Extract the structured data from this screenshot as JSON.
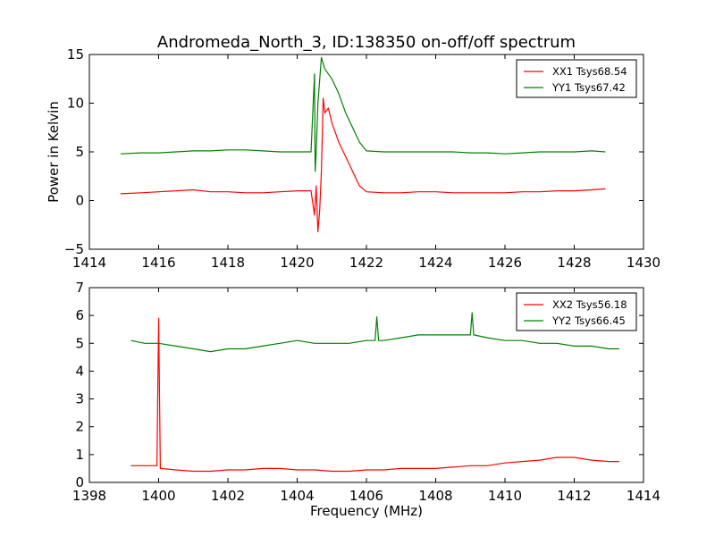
{
  "figure": {
    "title": "Andromeda_North_3, ID:138350 on-off/off spectrum"
  },
  "chart_data": [
    {
      "type": "line",
      "title": "Andromeda_North_3, ID:138350 on-off/off spectrum",
      "xlabel": "",
      "ylabel": "Power in Kelvin",
      "xlim": [
        1414,
        1430
      ],
      "ylim": [
        -5,
        15
      ],
      "xticks": [
        1414,
        1416,
        1418,
        1420,
        1422,
        1424,
        1426,
        1428,
        1430
      ],
      "yticks": [
        -5,
        0,
        5,
        10,
        15
      ],
      "grid": false,
      "legend_position": "top-right",
      "series": [
        {
          "name": "XX1 Tsys68.54",
          "color": "#ff0000",
          "x": [
            1414.9,
            1415.5,
            1416.0,
            1416.5,
            1417.0,
            1417.5,
            1418.0,
            1418.5,
            1419.0,
            1419.5,
            1420.0,
            1420.4,
            1420.5,
            1420.55,
            1420.6,
            1420.65,
            1420.7,
            1420.75,
            1420.8,
            1420.9,
            1421.0,
            1421.2,
            1421.4,
            1421.6,
            1421.8,
            1422.0,
            1422.5,
            1423.0,
            1423.5,
            1424.0,
            1424.5,
            1425.0,
            1425.5,
            1426.0,
            1426.5,
            1427.0,
            1427.5,
            1428.0,
            1428.5,
            1428.9
          ],
          "y": [
            0.7,
            0.8,
            0.9,
            1.0,
            1.1,
            0.9,
            0.9,
            0.8,
            0.8,
            0.9,
            1.0,
            1.0,
            -1.5,
            1.5,
            -3.2,
            -1.0,
            3.0,
            10.5,
            9.0,
            9.5,
            8.0,
            6.0,
            4.5,
            3.0,
            1.5,
            0.9,
            0.8,
            0.8,
            0.9,
            0.9,
            0.8,
            0.8,
            0.8,
            0.8,
            0.9,
            0.9,
            1.0,
            1.0,
            1.1,
            1.2
          ]
        },
        {
          "name": "YY1 Tsys67.42",
          "color": "#008000",
          "x": [
            1414.9,
            1415.5,
            1416.0,
            1416.5,
            1417.0,
            1417.5,
            1418.0,
            1418.5,
            1419.0,
            1419.5,
            1420.0,
            1420.4,
            1420.5,
            1420.52,
            1420.55,
            1420.6,
            1420.7,
            1420.8,
            1420.9,
            1421.0,
            1421.2,
            1421.4,
            1421.6,
            1421.8,
            1422.0,
            1422.5,
            1423.0,
            1423.5,
            1424.0,
            1424.5,
            1425.0,
            1425.5,
            1426.0,
            1426.5,
            1427.0,
            1427.5,
            1428.0,
            1428.5,
            1428.9
          ],
          "y": [
            4.8,
            4.9,
            4.9,
            5.0,
            5.1,
            5.1,
            5.2,
            5.2,
            5.1,
            5.0,
            5.0,
            5.0,
            13.0,
            3.0,
            5.0,
            10.0,
            14.7,
            13.5,
            13.0,
            12.5,
            11.0,
            9.0,
            7.5,
            6.0,
            5.1,
            5.0,
            5.0,
            5.0,
            5.0,
            5.0,
            4.9,
            4.9,
            4.8,
            4.9,
            5.0,
            5.0,
            5.0,
            5.1,
            5.0
          ]
        }
      ]
    },
    {
      "type": "line",
      "title": "",
      "xlabel": "Frequency (MHz)",
      "ylabel": "",
      "xlim": [
        1398,
        1414
      ],
      "ylim": [
        0,
        7
      ],
      "xticks": [
        1398,
        1400,
        1402,
        1404,
        1406,
        1408,
        1410,
        1412,
        1414
      ],
      "yticks": [
        0,
        1,
        2,
        3,
        4,
        5,
        6,
        7
      ],
      "grid": false,
      "legend_position": "top-right",
      "series": [
        {
          "name": "XX2 Tsys56.18",
          "color": "#ff0000",
          "x": [
            1399.2,
            1399.6,
            1399.95,
            1400.0,
            1400.05,
            1400.5,
            1401.0,
            1401.5,
            1402.0,
            1402.5,
            1403.0,
            1403.5,
            1404.0,
            1404.5,
            1405.0,
            1405.5,
            1406.0,
            1406.5,
            1407.0,
            1407.5,
            1408.0,
            1408.5,
            1409.0,
            1409.5,
            1410.0,
            1410.5,
            1411.0,
            1411.5,
            1412.0,
            1412.5,
            1413.0,
            1413.3
          ],
          "y": [
            0.6,
            0.6,
            0.6,
            5.9,
            0.5,
            0.45,
            0.4,
            0.4,
            0.45,
            0.45,
            0.5,
            0.5,
            0.45,
            0.45,
            0.4,
            0.4,
            0.45,
            0.45,
            0.5,
            0.5,
            0.5,
            0.55,
            0.6,
            0.6,
            0.7,
            0.75,
            0.8,
            0.9,
            0.9,
            0.8,
            0.75,
            0.75
          ]
        },
        {
          "name": "YY2 Tsys66.45",
          "color": "#008000",
          "x": [
            1399.2,
            1399.6,
            1400.0,
            1400.5,
            1401.0,
            1401.5,
            1402.0,
            1402.5,
            1403.0,
            1403.5,
            1404.0,
            1404.5,
            1405.0,
            1405.5,
            1406.0,
            1406.25,
            1406.3,
            1406.35,
            1406.5,
            1407.0,
            1407.5,
            1408.0,
            1408.5,
            1409.0,
            1409.05,
            1409.1,
            1409.5,
            1410.0,
            1410.5,
            1411.0,
            1411.5,
            1412.0,
            1412.5,
            1413.0,
            1413.3
          ],
          "y": [
            5.1,
            5.0,
            5.0,
            4.9,
            4.8,
            4.7,
            4.8,
            4.8,
            4.9,
            5.0,
            5.1,
            5.0,
            5.0,
            5.0,
            5.1,
            5.1,
            5.95,
            5.1,
            5.1,
            5.2,
            5.3,
            5.3,
            5.3,
            5.3,
            6.1,
            5.3,
            5.2,
            5.1,
            5.1,
            5.0,
            5.0,
            4.9,
            4.9,
            4.8,
            4.8
          ]
        }
      ]
    }
  ]
}
